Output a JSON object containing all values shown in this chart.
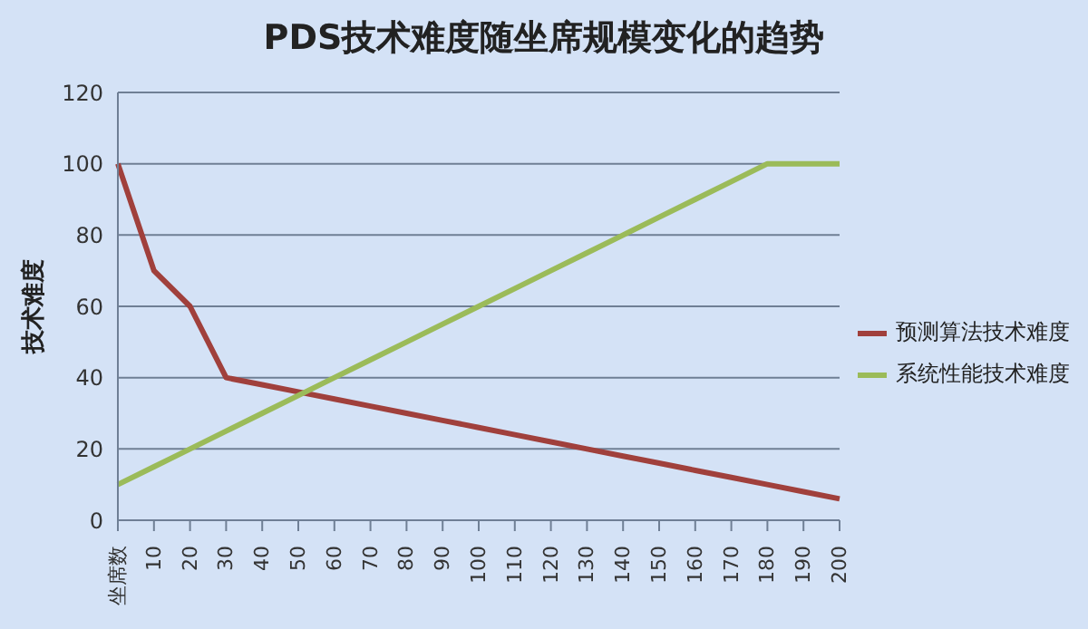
{
  "chart_data": {
    "type": "line",
    "title": "PDS技术难度随坐席规模变化的趋势",
    "ylabel": "技术难度",
    "categories": [
      "坐席数",
      "10",
      "20",
      "30",
      "40",
      "50",
      "60",
      "70",
      "80",
      "90",
      "100",
      "110",
      "120",
      "130",
      "140",
      "150",
      "160",
      "170",
      "180",
      "190",
      "200"
    ],
    "series": [
      {
        "name": "预测算法技术难度",
        "color": "#a0403c",
        "values": [
          100,
          70,
          60,
          40,
          38,
          36,
          34,
          32,
          30,
          28,
          26,
          24,
          22,
          20,
          18,
          16,
          14,
          12,
          10,
          8,
          6
        ]
      },
      {
        "name": "系统性能技术难度",
        "color": "#9bbb59",
        "values": [
          10,
          15,
          20,
          25,
          30,
          35,
          40,
          45,
          50,
          55,
          60,
          65,
          70,
          75,
          80,
          85,
          90,
          95,
          100,
          100,
          100
        ]
      }
    ],
    "ylim": [
      0,
      120
    ],
    "yticks": [
      0,
      20,
      40,
      60,
      80,
      100,
      120
    ],
    "grid": "y",
    "legend": "right",
    "marker": "none",
    "line_style": "solid"
  }
}
